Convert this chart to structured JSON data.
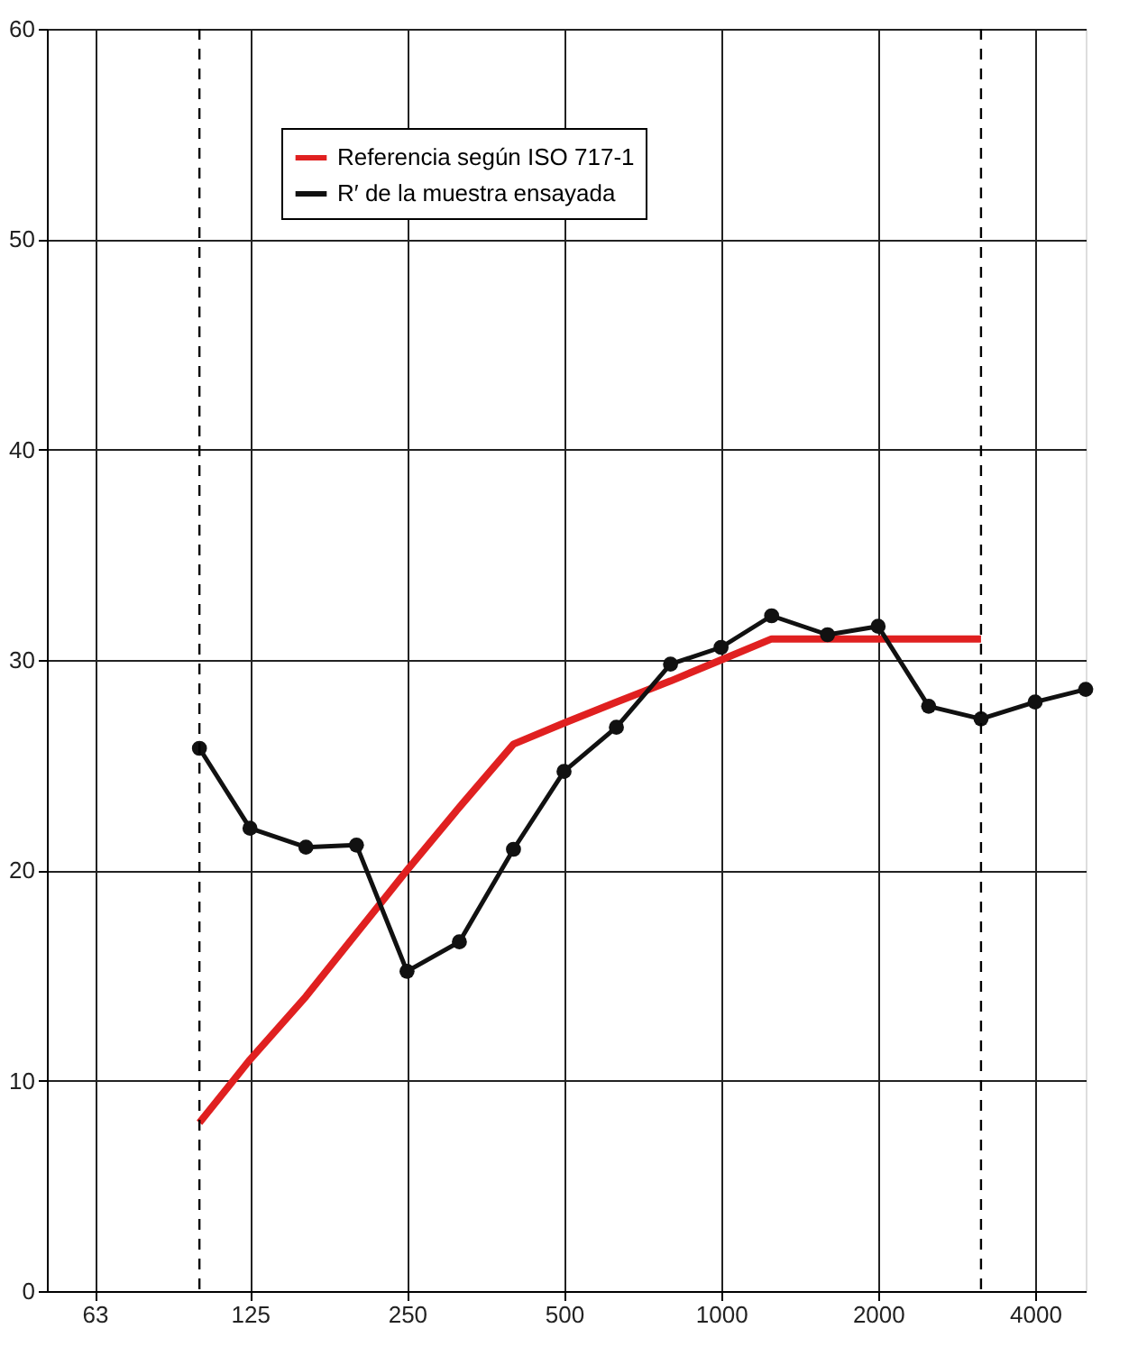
{
  "chart_data": {
    "type": "line",
    "log": "x",
    "xlim": [
      51,
      5000
    ],
    "ylim": [
      0,
      60
    ],
    "xticks": [
      63,
      125,
      250,
      500,
      1000,
      2000,
      4000
    ],
    "yticks": [
      0,
      10,
      20,
      30,
      40,
      50,
      60
    ],
    "grid": true,
    "legend": "top",
    "series": [
      {
        "name": "Referencia según ISO 717-1",
        "color": "#e02020",
        "marker": "none",
        "x": [
          100,
          125,
          160,
          200,
          250,
          315,
          400,
          500,
          630,
          800,
          1000,
          1250,
          1600,
          2000,
          2500,
          3150
        ],
        "values": [
          8,
          11,
          14,
          17,
          20,
          23,
          26,
          27,
          28,
          29,
          30,
          31,
          31,
          31,
          31,
          31
        ]
      },
      {
        "name": "R′ de la muestra ensayada",
        "color": "#111111",
        "marker": "circle",
        "x": [
          100,
          125,
          160,
          200,
          250,
          315,
          400,
          500,
          630,
          800,
          1000,
          1250,
          1600,
          2000,
          2500,
          3150,
          4000,
          5000
        ],
        "values": [
          25.8,
          22.0,
          21.1,
          21.2,
          15.2,
          16.6,
          21.0,
          24.7,
          26.8,
          29.8,
          30.6,
          32.1,
          31.2,
          31.6,
          27.8,
          27.2,
          28.0,
          28.6
        ]
      }
    ],
    "ref_lines": [
      {
        "axis": "x",
        "value": 100,
        "line_style": "dashed"
      },
      {
        "axis": "x",
        "value": 3150,
        "line_style": "dashed"
      }
    ]
  }
}
